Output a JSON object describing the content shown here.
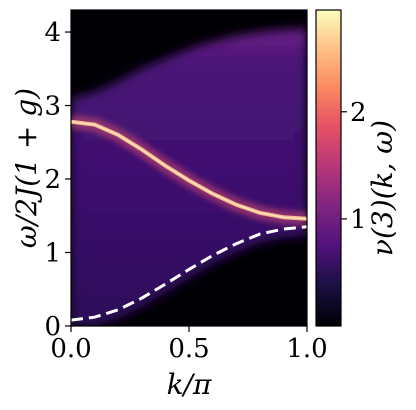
{
  "chart_data": {
    "type": "heatmap",
    "xlabel": "k/π",
    "ylabel": "ω/2J(1 + g)",
    "colorbar_label": "ν(3)(k, ω)",
    "colormap": "magma",
    "xlim": [
      0.0,
      1.0
    ],
    "ylim": [
      0.0,
      4.3
    ],
    "x_ticks": [
      "0.0",
      "0.5",
      "1.0"
    ],
    "y_ticks": [
      "0",
      "1",
      "2",
      "3",
      "4"
    ],
    "colorbar_range": [
      0.0,
      2.95
    ],
    "colorbar_ticks": [
      "1",
      "2"
    ],
    "bright_band": {
      "description": "sharp peak",
      "k": [
        0.0,
        0.1,
        0.2,
        0.3,
        0.4,
        0.5,
        0.6,
        0.7,
        0.8,
        0.9,
        1.0
      ],
      "omega": [
        2.78,
        2.74,
        2.6,
        2.4,
        2.18,
        1.98,
        1.8,
        1.65,
        1.54,
        1.48,
        1.46
      ]
    },
    "continuum_upper_edge": {
      "k": [
        0.0,
        0.1,
        0.2,
        0.3,
        0.4,
        0.5,
        0.6,
        0.7,
        0.8,
        0.9,
        1.0
      ],
      "omega": [
        3.1,
        3.18,
        3.33,
        3.5,
        3.64,
        3.77,
        3.87,
        3.95,
        4.0,
        4.03,
        4.05
      ]
    },
    "dashed_line": {
      "k": [
        0.0,
        0.1,
        0.2,
        0.3,
        0.4,
        0.5,
        0.6,
        0.7,
        0.8,
        0.9,
        1.0
      ],
      "omega": [
        0.08,
        0.12,
        0.22,
        0.38,
        0.57,
        0.77,
        0.96,
        1.12,
        1.25,
        1.32,
        1.35
      ]
    }
  }
}
